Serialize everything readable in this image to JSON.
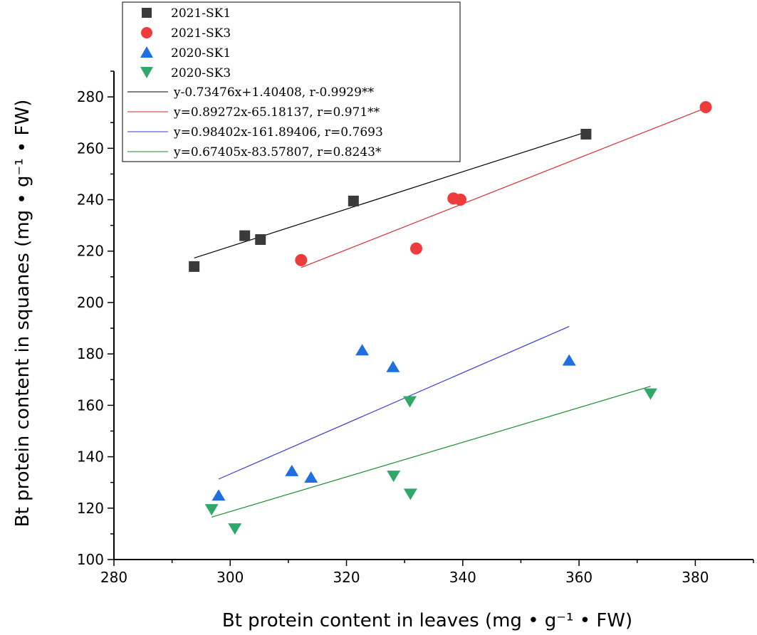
{
  "chart_data": {
    "type": "scatter",
    "xlabel": "Bt protein content in leaves (mg • g⁻¹ • FW)",
    "ylabel": "Bt protein content in squanes (mg • g⁻¹ • FW)",
    "xlim": [
      280,
      390
    ],
    "ylim": [
      100,
      290
    ],
    "xticks": [
      280,
      300,
      320,
      340,
      360,
      380
    ],
    "yticks": [
      100,
      120,
      140,
      160,
      180,
      200,
      220,
      240,
      260,
      280
    ],
    "legend_position": "top-left",
    "series": [
      {
        "name": "2021-SK1",
        "marker": "square",
        "color": "#3a3a3a",
        "points": [
          [
            293.8,
            214
          ],
          [
            302.5,
            226
          ],
          [
            305.2,
            224.5
          ],
          [
            321.2,
            239.5
          ],
          [
            361.2,
            265.5
          ]
        ]
      },
      {
        "name": "2021-SK3",
        "marker": "circle",
        "color": "#ef3b3b",
        "points": [
          [
            312.2,
            216.5
          ],
          [
            332.0,
            221
          ],
          [
            338.4,
            240.5
          ],
          [
            339.6,
            240
          ],
          [
            381.8,
            276
          ]
        ]
      },
      {
        "name": "2020-SK1",
        "marker": "triangle-up",
        "color": "#1f6fe0",
        "points": [
          [
            298.0,
            125
          ],
          [
            310.6,
            134.5
          ],
          [
            313.9,
            132
          ],
          [
            322.7,
            181.5
          ],
          [
            328.0,
            175
          ],
          [
            358.3,
            177.5
          ]
        ]
      },
      {
        "name": "2020-SK3",
        "marker": "triangle-down",
        "color": "#2fa86a",
        "points": [
          [
            296.8,
            119.5
          ],
          [
            300.8,
            112
          ],
          [
            328.1,
            132.5
          ],
          [
            330.9,
            161.5
          ],
          [
            331.0,
            125.5
          ],
          [
            372.3,
            164.5
          ]
        ]
      }
    ],
    "fits": [
      {
        "label": "y-0.73476x+1.40408, r-0.9929**",
        "color": "#000000",
        "x_range": [
          293.8,
          361.2
        ],
        "y_range": [
          217.3,
          266.3
        ]
      },
      {
        "label": "y=0.89272x-65.18137, r=0.971**",
        "color": "#d42b2b",
        "x_range": [
          312.2,
          381.8
        ],
        "y_range": [
          213.6,
          275.7
        ]
      },
      {
        "label": "y=0.98402x-161.89406, r=0.7693",
        "color": "#3a3ad6",
        "x_range": [
          298.0,
          358.3
        ],
        "y_range": [
          131.3,
          190.7
        ]
      },
      {
        "label": "y=0.67405x-83.57807, r=0.8243*",
        "color": "#1d8a2e",
        "x_range": [
          296.8,
          372.3
        ],
        "y_range": [
          116.5,
          167.4
        ]
      }
    ]
  }
}
